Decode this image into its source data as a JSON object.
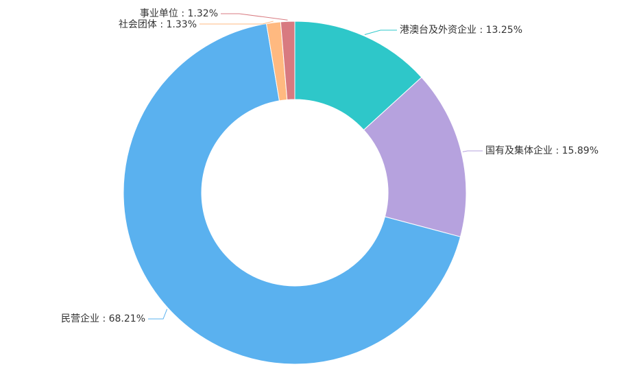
{
  "chart_data": {
    "type": "pie",
    "variant": "donut",
    "title": "",
    "slices": [
      {
        "name": "港澳台及外资企业",
        "value": 13.25,
        "label": "港澳台及外资企业 : 13.25%",
        "color": "#2ec7c9"
      },
      {
        "name": "国有及集体企业",
        "value": 15.89,
        "label": "国有及集体企业 : 15.89%",
        "color": "#b6a2de"
      },
      {
        "name": "民营企业",
        "value": 68.21,
        "label": "民营企业 : 68.21%",
        "color": "#5ab1ef"
      },
      {
        "name": "社会团体",
        "value": 1.33,
        "label": "社会团体 : 1.33%",
        "color": "#ffb980"
      },
      {
        "name": "事业单位",
        "value": 1.32,
        "label": "事业单位 : 1.32%",
        "color": "#d87a80"
      }
    ]
  }
}
